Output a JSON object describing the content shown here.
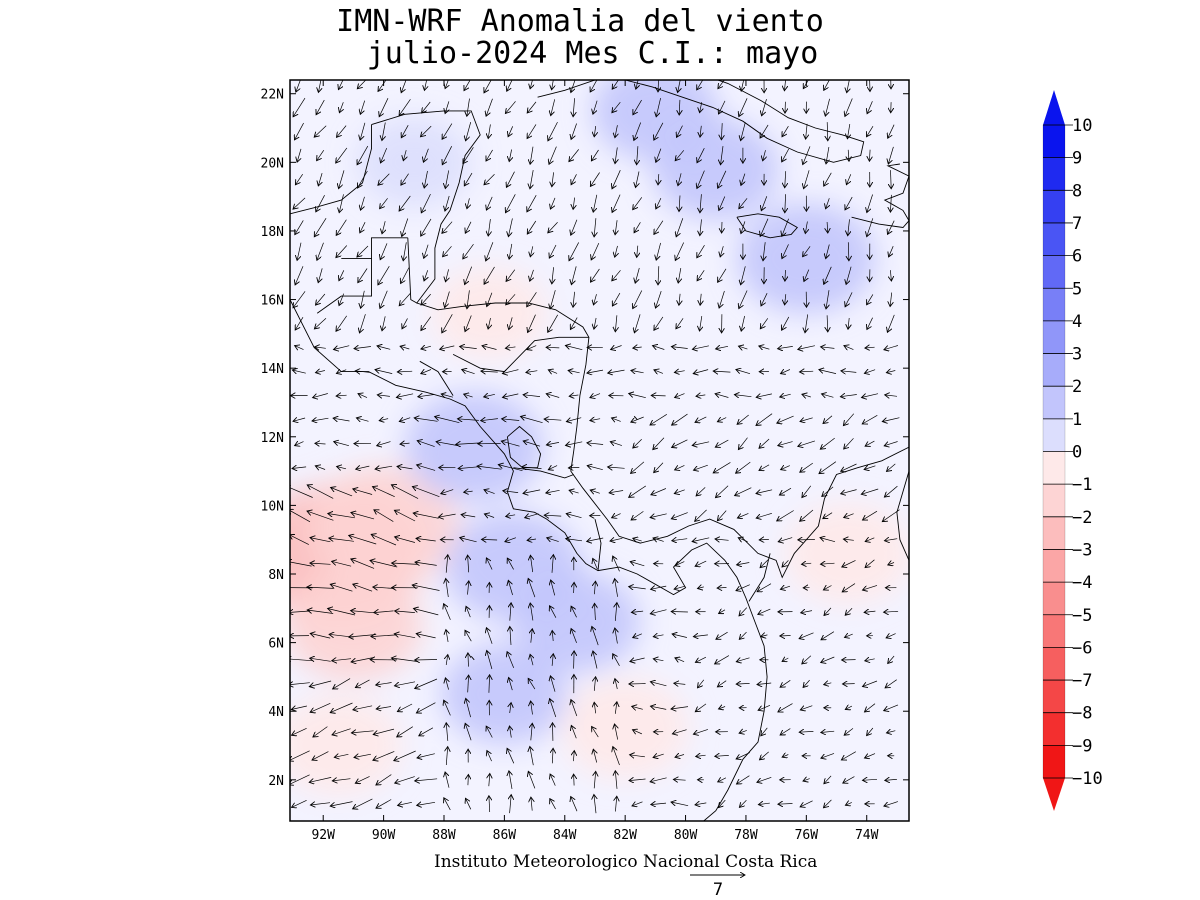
{
  "title": {
    "line1": "IMN-WRF Anomalia del viento",
    "line2": "julio-2024 Mes C.I.: mayo"
  },
  "footer": {
    "credit": "Instituto Meteorologico Nacional Costa Rica",
    "reference_vector_value": "7"
  },
  "chart_data": {
    "type": "heatmap",
    "variable": "wind anomaly (filled contours + vectors)",
    "x_axis": {
      "range": [
        -93.1,
        -72.6
      ],
      "tick_labels": [
        "92W",
        "90W",
        "88W",
        "86W",
        "84W",
        "82W",
        "80W",
        "78W",
        "76W",
        "74W"
      ],
      "tick_values": [
        -92,
        -90,
        -88,
        -86,
        -84,
        -82,
        -80,
        -78,
        -76,
        -74
      ]
    },
    "y_axis": {
      "range": [
        0.8,
        22.4
      ],
      "tick_labels": [
        "2N",
        "4N",
        "6N",
        "8N",
        "10N",
        "12N",
        "14N",
        "16N",
        "18N",
        "20N",
        "22N"
      ],
      "tick_values": [
        2,
        4,
        6,
        8,
        10,
        12,
        14,
        16,
        18,
        20,
        22
      ]
    },
    "colorbar": {
      "levels": [
        10,
        9,
        8,
        7,
        6,
        5,
        4,
        3,
        2,
        1,
        0,
        -1,
        -2,
        -3,
        -4,
        -5,
        -6,
        -7,
        -8,
        -9,
        -10
      ],
      "level_labels": [
        "10",
        "9",
        "8",
        "7",
        "6",
        "5",
        "4",
        "3",
        "2",
        "1",
        "0",
        "−1",
        "−2",
        "−3",
        "−4",
        "−5",
        "−6",
        "−7",
        "−8",
        "−9",
        "−10"
      ],
      "colors": [
        "#0a14ee",
        "#1f2af0",
        "#3540f2",
        "#4a55f4",
        "#6169f6",
        "#787ff7",
        "#9096f9",
        "#a7acfa",
        "#c2c5fc",
        "#dcdefd",
        "#f2f2ff",
        "#fee9e9",
        "#fdd4d4",
        "#fcbdbd",
        "#fba6a6",
        "#f98e8e",
        "#f87777",
        "#f65f5f",
        "#f44747",
        "#f32f2f",
        "#f01616"
      ],
      "extends": "both"
    },
    "anomaly_regions": [
      {
        "lon": -91.5,
        "lat": 8.6,
        "value": -3.5
      },
      {
        "lon": -90.0,
        "lat": 9.4,
        "value": -2.5
      },
      {
        "lon": -91.0,
        "lat": 6.5,
        "value": -2.0
      },
      {
        "lon": -91.5,
        "lat": 3.0,
        "value": -1.5
      },
      {
        "lon": -87.0,
        "lat": 11.7,
        "value": 2.0
      },
      {
        "lon": -85.7,
        "lat": 8.2,
        "value": 2.0
      },
      {
        "lon": -83.6,
        "lat": 6.6,
        "value": 1.5
      },
      {
        "lon": -86.0,
        "lat": 4.5,
        "value": 1.5
      },
      {
        "lon": -76.0,
        "lat": 17.2,
        "value": 2.0
      },
      {
        "lon": -79.0,
        "lat": 19.8,
        "value": 1.5
      },
      {
        "lon": -81.0,
        "lat": 21.5,
        "value": 1.5
      },
      {
        "lon": -89.0,
        "lat": 20.0,
        "value": 1.0
      },
      {
        "lon": -74.6,
        "lat": 8.6,
        "value": -1.5
      },
      {
        "lon": -82.0,
        "lat": 3.5,
        "value": -1.5
      },
      {
        "lon": -86.5,
        "lat": 15.6,
        "value": -1.0
      }
    ],
    "reference_vector": {
      "magnitude": 7
    }
  }
}
